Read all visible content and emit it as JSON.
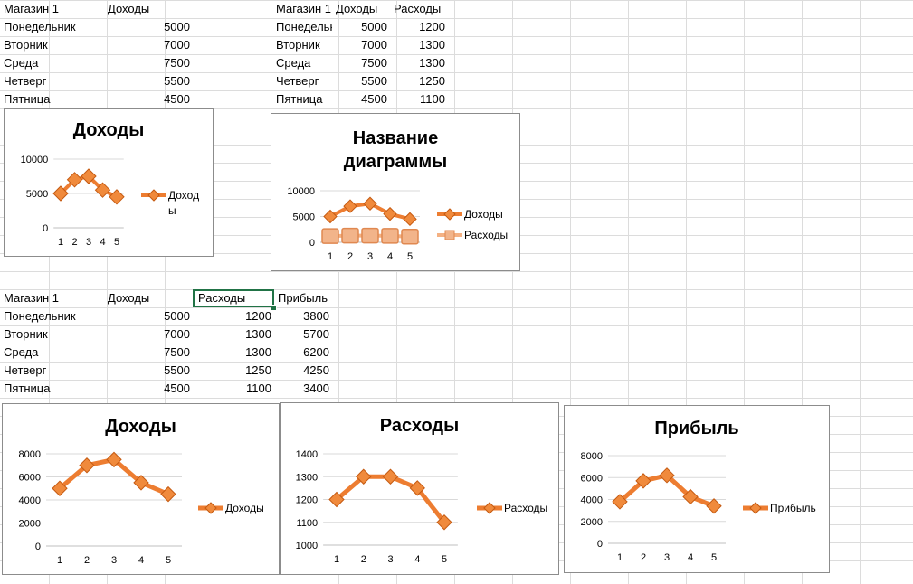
{
  "colors": {
    "accent": "#ED7D31",
    "accent_light": "#F4B183",
    "grid": "#d9d9d9",
    "selection": "#217346"
  },
  "table1": {
    "headers": [
      "Магазин 1",
      "Доходы"
    ],
    "rows": [
      [
        "Понедельник",
        "5000"
      ],
      [
        "Вторник",
        "7000"
      ],
      [
        "Среда",
        "7500"
      ],
      [
        "Четверг",
        "5500"
      ],
      [
        "Пятница",
        "4500"
      ]
    ]
  },
  "table2": {
    "headers": [
      "Магазин 1",
      "Доходы",
      "Расходы"
    ],
    "rows": [
      [
        "Понедельник",
        "5000",
        "1200"
      ],
      [
        "Вторник",
        "7000",
        "1300"
      ],
      [
        "Среда",
        "7500",
        "1300"
      ],
      [
        "Четверг",
        "5500",
        "1250"
      ],
      [
        "Пятница",
        "4500",
        "1100"
      ]
    ]
  },
  "table3": {
    "headers": [
      "Магазин 1",
      "Доходы",
      "Расходы",
      "Прибыль"
    ],
    "selected_header": "Расходы",
    "rows": [
      [
        "Понедельник",
        "5000",
        "1200",
        "3800"
      ],
      [
        "Вторник",
        "7000",
        "1300",
        "5700"
      ],
      [
        "Среда",
        "7500",
        "1300",
        "6200"
      ],
      [
        "Четверг",
        "5500",
        "1250",
        "4250"
      ],
      [
        "Пятница",
        "4500",
        "1100",
        "3400"
      ]
    ]
  },
  "chart_data": [
    {
      "id": "c1",
      "type": "line",
      "title": "Доходы",
      "categories": [
        "1",
        "2",
        "3",
        "4",
        "5"
      ],
      "yticks": [
        "0",
        "5000",
        "10000"
      ],
      "ylim": [
        0,
        10000
      ],
      "series": [
        {
          "name": "Доходы",
          "values": [
            5000,
            7000,
            7500,
            5500,
            4500
          ],
          "marker": "diamond"
        }
      ],
      "legend": "right",
      "legend_lines": [
        "Доход",
        "ы"
      ]
    },
    {
      "id": "c2",
      "type": "line",
      "title": "Название диаграммы",
      "categories": [
        "1",
        "2",
        "3",
        "4",
        "5"
      ],
      "yticks": [
        "0",
        "5000",
        "10000"
      ],
      "ylim": [
        0,
        10000
      ],
      "series": [
        {
          "name": "Доходы",
          "values": [
            5000,
            7000,
            7500,
            5500,
            4500
          ],
          "marker": "diamond"
        },
        {
          "name": "Расходы",
          "values": [
            1200,
            1300,
            1300,
            1250,
            1100
          ],
          "marker": "square"
        }
      ],
      "legend": "right"
    },
    {
      "id": "c3",
      "type": "line",
      "title": "Доходы",
      "categories": [
        "1",
        "2",
        "3",
        "4",
        "5"
      ],
      "yticks": [
        "0",
        "2000",
        "4000",
        "6000",
        "8000"
      ],
      "ylim": [
        0,
        8000
      ],
      "series": [
        {
          "name": "Доходы",
          "values": [
            5000,
            7000,
            7500,
            5500,
            4500
          ],
          "marker": "diamond"
        }
      ],
      "legend": "right"
    },
    {
      "id": "c4",
      "type": "line",
      "title": "Расходы",
      "categories": [
        "1",
        "2",
        "3",
        "4",
        "5"
      ],
      "yticks": [
        "1000",
        "1100",
        "1200",
        "1300",
        "1400"
      ],
      "ylim": [
        1000,
        1400
      ],
      "series": [
        {
          "name": "Расходы",
          "values": [
            1200,
            1300,
            1300,
            1250,
            1100
          ],
          "marker": "diamond"
        }
      ],
      "legend": "right"
    },
    {
      "id": "c5",
      "type": "line",
      "title": "Прибыль",
      "categories": [
        "1",
        "2",
        "3",
        "4",
        "5"
      ],
      "yticks": [
        "0",
        "2000",
        "4000",
        "6000",
        "8000"
      ],
      "ylim": [
        0,
        8000
      ],
      "series": [
        {
          "name": "Прибыль",
          "values": [
            3800,
            5700,
            6200,
            4250,
            3400
          ],
          "marker": "diamond"
        }
      ],
      "legend": "right"
    }
  ]
}
